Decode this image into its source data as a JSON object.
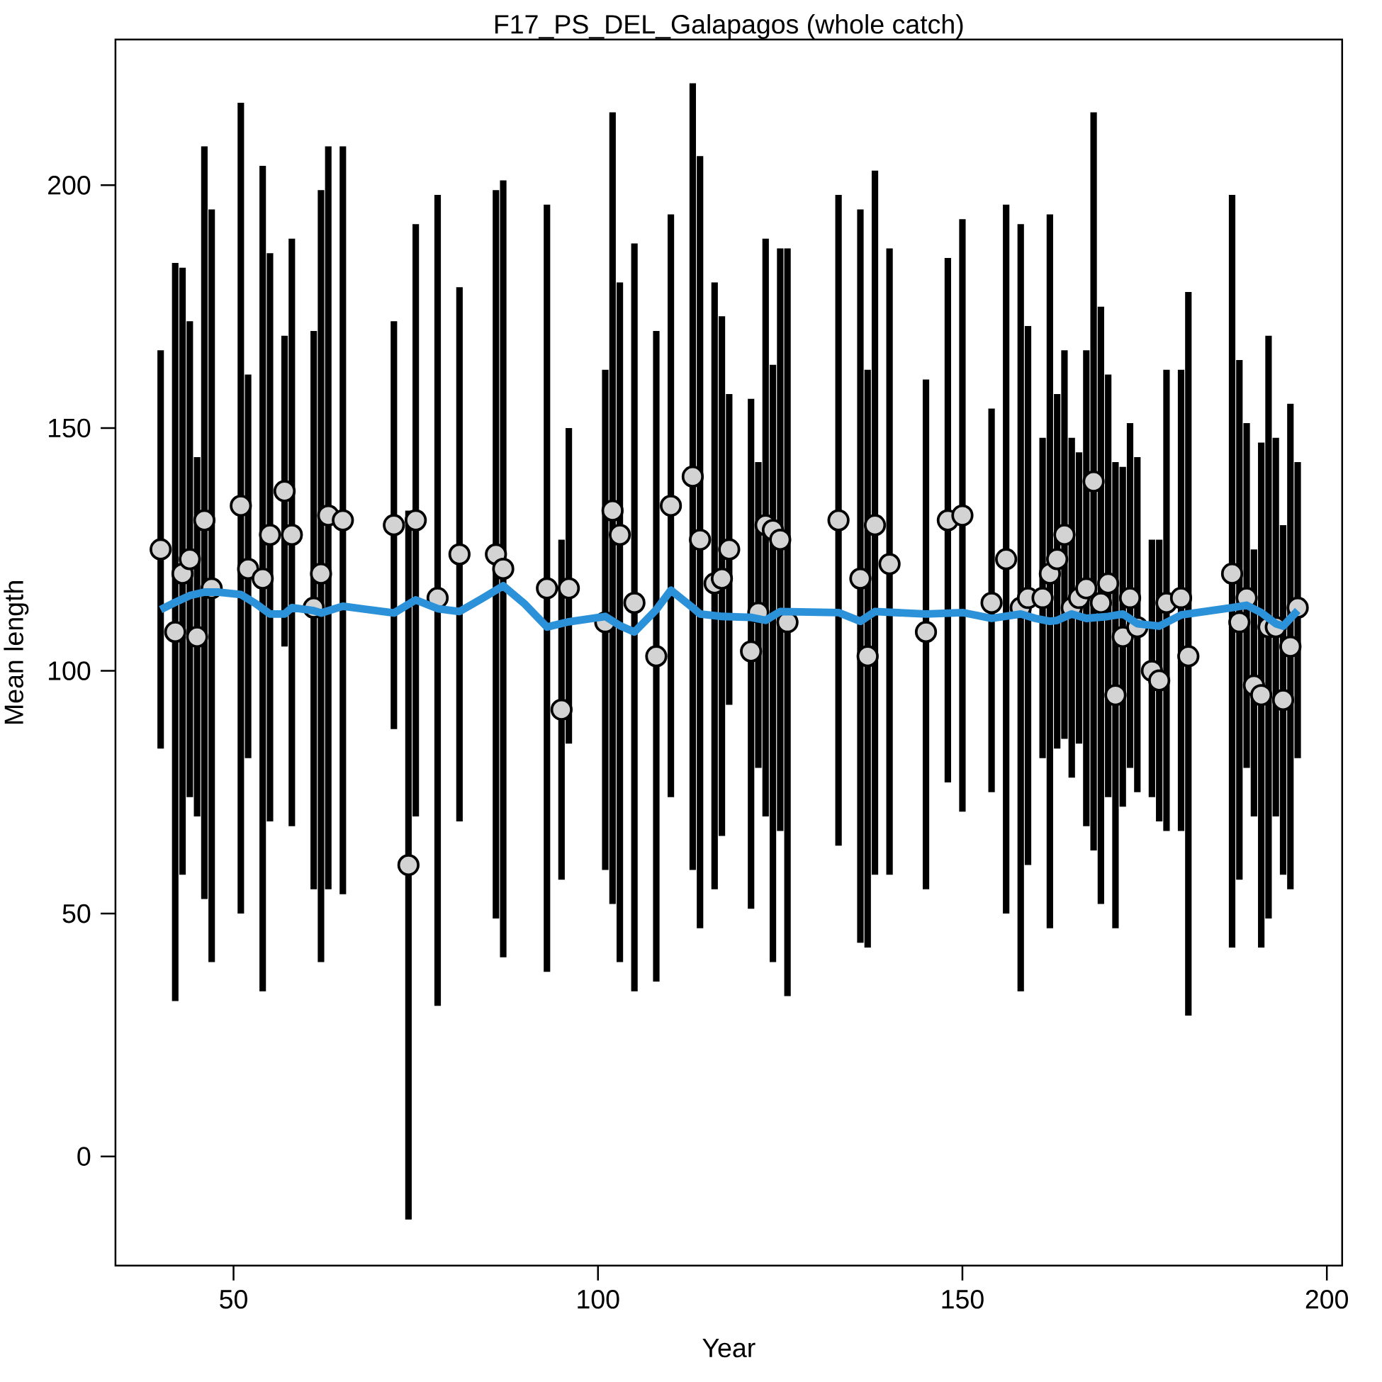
{
  "chart_data": {
    "type": "scatter",
    "title": "F17_PS_DEL_Galapagos (whole catch)",
    "xlabel": "Year",
    "ylabel": "Mean length",
    "xlim": [
      33.8,
      202.1
    ],
    "ylim": [
      -22.5,
      230
    ],
    "xticks": [
      50,
      100,
      150,
      200
    ],
    "yticks": [
      0,
      50,
      100,
      150,
      200
    ],
    "grid": false,
    "series": [
      {
        "color": "#d3d3d3",
        "marker": "circle",
        "x": [
          40,
          42,
          43,
          44,
          45,
          46,
          47,
          51,
          52,
          54,
          55,
          57,
          58,
          61,
          62,
          63,
          65,
          72,
          74,
          75,
          78,
          81,
          86,
          87,
          93,
          95,
          96,
          101,
          102,
          103,
          105,
          108,
          110,
          113,
          114,
          116,
          117,
          118,
          121,
          122,
          123,
          124,
          125,
          126,
          133,
          136,
          137,
          138,
          140,
          145,
          148,
          150,
          154,
          156,
          158,
          159,
          161,
          162,
          163,
          164,
          165,
          166,
          167,
          168,
          169,
          170,
          171,
          172,
          173,
          174,
          176,
          177,
          178,
          180,
          181,
          187,
          188,
          189,
          190,
          191,
          192,
          193,
          194,
          195,
          196
        ],
        "values": [
          125,
          108,
          120,
          123,
          107,
          131,
          117,
          134,
          121,
          119,
          128,
          137,
          128,
          113,
          120,
          132,
          131,
          130,
          60,
          131,
          115,
          124,
          124,
          121,
          117,
          92,
          117,
          110,
          133,
          128,
          114,
          103,
          134,
          140,
          127,
          118,
          119,
          125,
          104,
          112,
          130,
          129,
          127,
          110,
          131,
          119,
          103,
          130,
          122,
          108,
          131,
          132,
          114,
          123,
          113,
          115,
          115,
          120,
          123,
          128,
          113,
          115,
          117,
          139,
          114,
          118,
          95,
          107,
          115,
          109,
          100,
          98,
          114,
          115,
          103,
          120,
          110,
          115,
          97,
          95,
          109,
          109,
          94,
          105,
          113
        ],
        "errors": [
          [
            84,
            166
          ],
          [
            32,
            184
          ],
          [
            58,
            183
          ],
          [
            74,
            172
          ],
          [
            70,
            144
          ],
          [
            53,
            208
          ],
          [
            40,
            195
          ],
          [
            50,
            217
          ],
          [
            82,
            161
          ],
          [
            34,
            204
          ],
          [
            69,
            186
          ],
          [
            105,
            169
          ],
          [
            68,
            189
          ],
          [
            55,
            170
          ],
          [
            40,
            199
          ],
          [
            55,
            208
          ],
          [
            54,
            208
          ],
          [
            88,
            172
          ],
          [
            -13,
            133
          ],
          [
            70,
            192
          ],
          [
            31,
            198
          ],
          [
            69,
            179
          ],
          [
            49,
            199
          ],
          [
            41,
            201
          ],
          [
            38,
            196
          ],
          [
            57,
            127
          ],
          [
            85,
            150
          ],
          [
            59,
            162
          ],
          [
            52,
            215
          ],
          [
            40,
            180
          ],
          [
            34,
            188
          ],
          [
            36,
            170
          ],
          [
            74,
            194
          ],
          [
            59,
            221
          ],
          [
            47,
            206
          ],
          [
            55,
            180
          ],
          [
            66,
            173
          ],
          [
            93,
            157
          ],
          [
            51,
            156
          ],
          [
            80,
            143
          ],
          [
            70,
            189
          ],
          [
            40,
            163
          ],
          [
            67,
            187
          ],
          [
            33,
            187
          ],
          [
            64,
            198
          ],
          [
            44,
            195
          ],
          [
            43,
            162
          ],
          [
            58,
            203
          ],
          [
            58,
            187
          ],
          [
            55,
            160
          ],
          [
            77,
            185
          ],
          [
            71,
            193
          ],
          [
            75,
            154
          ],
          [
            50,
            196
          ],
          [
            34,
            192
          ],
          [
            60,
            171
          ],
          [
            82,
            148
          ],
          [
            47,
            194
          ],
          [
            84,
            157
          ],
          [
            86,
            166
          ],
          [
            78,
            148
          ],
          [
            85,
            145
          ],
          [
            68,
            166
          ],
          [
            63,
            215
          ],
          [
            52,
            175
          ],
          [
            74,
            161
          ],
          [
            47,
            143
          ],
          [
            72,
            142
          ],
          [
            80,
            151
          ],
          [
            75,
            144
          ],
          [
            74,
            127
          ],
          [
            69,
            127
          ],
          [
            67,
            162
          ],
          [
            67,
            162
          ],
          [
            29,
            178
          ],
          [
            43,
            198
          ],
          [
            57,
            164
          ],
          [
            80,
            151
          ],
          [
            70,
            125
          ],
          [
            43,
            147
          ],
          [
            49,
            169
          ],
          [
            70,
            148
          ],
          [
            58,
            130
          ],
          [
            55,
            155
          ],
          [
            82,
            143
          ]
        ]
      },
      {
        "type": "line",
        "color": "#2b91d9",
        "marker": "none",
        "x": [
          40,
          42,
          44,
          46,
          48,
          51,
          53,
          55,
          57,
          58,
          61,
          62,
          65,
          72,
          75,
          78,
          81,
          84,
          87,
          90,
          93,
          96,
          101,
          103,
          105,
          108,
          110,
          113,
          114,
          117,
          121,
          123,
          125,
          133,
          136,
          138,
          145,
          150,
          154,
          158,
          160,
          162,
          163,
          165,
          167,
          170,
          172,
          174,
          177,
          180,
          187,
          189,
          191,
          193,
          194,
          196
        ],
        "values": [
          112.6,
          114.1,
          115.5,
          116.2,
          116.2,
          115.7,
          113.9,
          111.7,
          111.7,
          113.0,
          112.4,
          111.9,
          113.3,
          111.9,
          114.6,
          112.8,
          112.2,
          114.8,
          117.5,
          113.7,
          109.0,
          110.1,
          111.2,
          109.3,
          108.0,
          112.6,
          116.6,
          113.0,
          111.7,
          111.2,
          111.0,
          110.4,
          112.2,
          112.0,
          110.2,
          112.2,
          111.7,
          112.0,
          110.8,
          111.7,
          110.8,
          110.2,
          110.4,
          111.7,
          110.8,
          111.2,
          111.7,
          109.7,
          109.2,
          111.5,
          113.0,
          113.5,
          112.0,
          109.7,
          109.2,
          112.4
        ]
      }
    ]
  }
}
